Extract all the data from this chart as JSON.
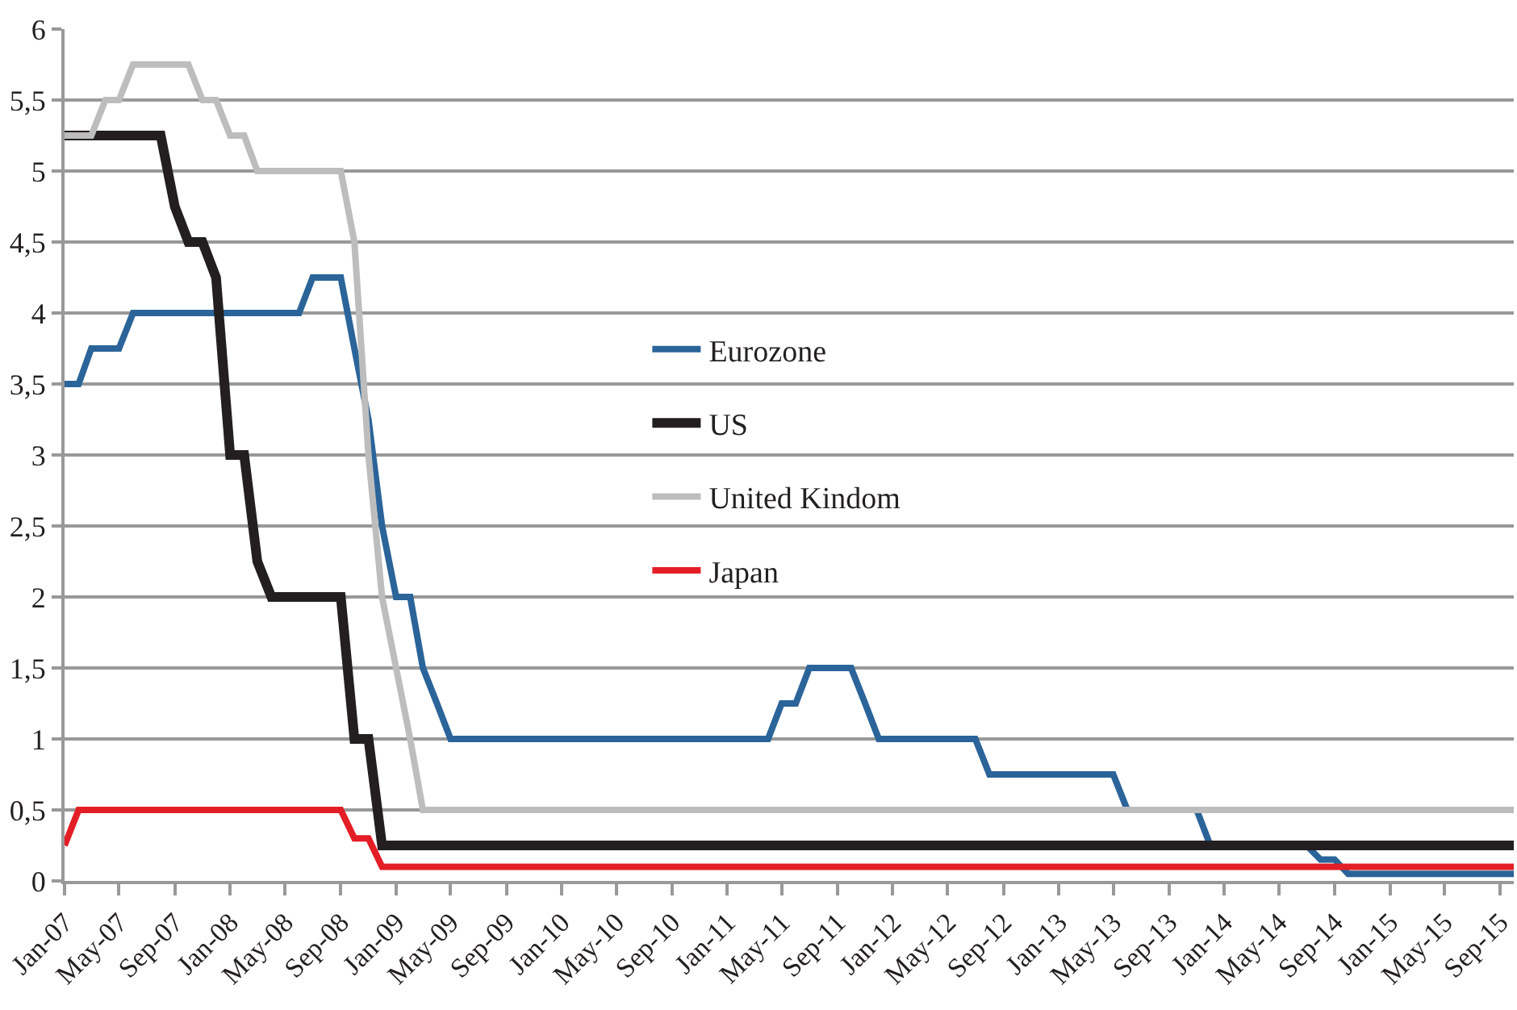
{
  "chart_data": {
    "type": "line",
    "xlim": [
      "2007-01",
      "2015-10"
    ],
    "xticks": [
      {
        "value": "2007-01",
        "label": "Jan-07"
      },
      {
        "value": "2007-05",
        "label": "May-07"
      },
      {
        "value": "2007-09",
        "label": "Sep-07"
      },
      {
        "value": "2008-01",
        "label": "Jan-08"
      },
      {
        "value": "2008-05",
        "label": "May-08"
      },
      {
        "value": "2008-09",
        "label": "Sep-08"
      },
      {
        "value": "2009-01",
        "label": "Jan-09"
      },
      {
        "value": "2009-05",
        "label": "May-09"
      },
      {
        "value": "2009-09",
        "label": "Sep-09"
      },
      {
        "value": "2010-01",
        "label": "Jan-10"
      },
      {
        "value": "2010-05",
        "label": "May-10"
      },
      {
        "value": "2010-09",
        "label": "Sep-10"
      },
      {
        "value": "2011-01",
        "label": "Jan-11"
      },
      {
        "value": "2011-05",
        "label": "May-11"
      },
      {
        "value": "2011-09",
        "label": "Sep-11"
      },
      {
        "value": "2012-01",
        "label": "Jan-12"
      },
      {
        "value": "2012-05",
        "label": "May-12"
      },
      {
        "value": "2012-09",
        "label": "Sep-12"
      },
      {
        "value": "2013-01",
        "label": "Jan-13"
      },
      {
        "value": "2013-05",
        "label": "May-13"
      },
      {
        "value": "2013-09",
        "label": "Sep-13"
      },
      {
        "value": "2014-01",
        "label": "Jan-14"
      },
      {
        "value": "2014-05",
        "label": "May-14"
      },
      {
        "value": "2014-09",
        "label": "Sep-14"
      },
      {
        "value": "2015-01",
        "label": "Jan-15"
      },
      {
        "value": "2015-05",
        "label": "May-15"
      },
      {
        "value": "2015-09",
        "label": "Sep-15"
      }
    ],
    "ylim": [
      0,
      6
    ],
    "yticks": [
      0,
      {
        "value": 0.5,
        "label": "0,5"
      },
      1,
      {
        "value": 1.5,
        "label": "1,5"
      },
      2,
      {
        "value": 2.5,
        "label": "2,5"
      },
      3,
      {
        "value": 3.5,
        "label": "3,5"
      },
      4,
      {
        "value": 4.5,
        "label": "4,5"
      },
      5,
      {
        "value": 5.5,
        "label": "5,5"
      },
      6
    ],
    "grid": "y",
    "legend": "center",
    "marker": "none",
    "line_style": "solid",
    "series": [
      {
        "name": "Eurozone",
        "color": "#2a6499",
        "x": [
          "2007-01",
          "2007-02",
          "2007-03",
          "2007-05",
          "2007-06",
          "2008-06",
          "2008-07",
          "2008-09",
          "2008-10",
          "2008-11",
          "2008-12",
          "2009-01",
          "2009-02",
          "2009-03",
          "2009-04",
          "2009-05",
          "2011-04",
          "2011-05",
          "2011-06",
          "2011-07",
          "2011-10",
          "2011-11",
          "2011-12",
          "2012-07",
          "2012-08",
          "2013-05",
          "2013-06",
          "2013-11",
          "2013-12",
          "2014-07",
          "2014-08",
          "2014-09",
          "2014-10",
          "2015-10"
        ],
        "values": [
          3.5,
          3.5,
          3.75,
          3.75,
          4.0,
          4.0,
          4.25,
          4.25,
          3.75,
          3.25,
          2.5,
          2.0,
          2.0,
          1.5,
          1.25,
          1.0,
          1.0,
          1.25,
          1.25,
          1.5,
          1.5,
          1.25,
          1.0,
          1.0,
          0.75,
          0.75,
          0.5,
          0.5,
          0.25,
          0.25,
          0.15,
          0.15,
          0.05,
          0.05
        ]
      },
      {
        "name": "US",
        "color": "#231f20",
        "x": [
          "2007-01",
          "2007-08",
          "2007-09",
          "2007-10",
          "2007-11",
          "2007-12",
          "2008-01",
          "2008-02",
          "2008-03",
          "2008-04",
          "2008-09",
          "2008-10",
          "2008-11",
          "2008-12",
          "2015-10"
        ],
        "values": [
          5.25,
          5.25,
          4.75,
          4.5,
          4.5,
          4.25,
          3.0,
          3.0,
          2.25,
          2.0,
          2.0,
          1.0,
          1.0,
          0.25,
          0.25
        ]
      },
      {
        "name": "United Kindom",
        "color": "#bdbdbd",
        "x": [
          "2007-01",
          "2007-03",
          "2007-04",
          "2007-05",
          "2007-06",
          "2007-10",
          "2007-11",
          "2007-12",
          "2008-01",
          "2008-02",
          "2008-03",
          "2008-09",
          "2008-10",
          "2008-11",
          "2008-12",
          "2009-01",
          "2009-02",
          "2009-03",
          "2015-10"
        ],
        "values": [
          5.25,
          5.25,
          5.5,
          5.5,
          5.75,
          5.75,
          5.5,
          5.5,
          5.25,
          5.25,
          5.0,
          5.0,
          4.5,
          3.0,
          2.0,
          1.5,
          1.0,
          0.5,
          0.5
        ]
      },
      {
        "name": "Japan",
        "color": "#e41e26",
        "x": [
          "2007-01",
          "2007-02",
          "2008-09",
          "2008-10",
          "2008-11",
          "2008-12",
          "2015-10"
        ],
        "values": [
          0.25,
          0.5,
          0.5,
          0.3,
          0.3,
          0.1,
          0.1
        ]
      }
    ]
  }
}
